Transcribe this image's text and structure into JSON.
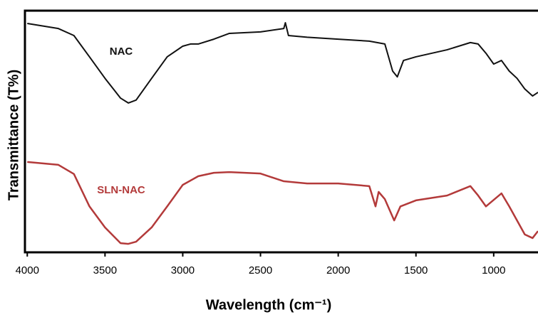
{
  "chart_data": {
    "type": "line",
    "xlabel": "Wavelength (cm⁻¹)",
    "ylabel": "Transmittance (T%)",
    "xlim": [
      4015,
      715
    ],
    "xticks": [
      4000,
      3500,
      3000,
      2500,
      2000,
      1500,
      1000
    ],
    "ylim": [
      0,
      100
    ],
    "series": [
      {
        "name": "NAC",
        "color": "#111111",
        "x": [
          4000,
          3800,
          3700,
          3600,
          3500,
          3400,
          3350,
          3300,
          3200,
          3100,
          3000,
          2950,
          2900,
          2800,
          2700,
          2500,
          2350,
          2340,
          2320,
          2200,
          2000,
          1800,
          1700,
          1650,
          1620,
          1580,
          1500,
          1300,
          1150,
          1100,
          1050,
          1000,
          950,
          900,
          850,
          800,
          750,
          715
        ],
        "values": [
          94.7,
          92.6,
          89.7,
          80.9,
          72,
          63.8,
          61.8,
          63,
          72,
          80.9,
          85.3,
          86.2,
          86.2,
          88.2,
          90.6,
          91.2,
          92.6,
          95,
          89.7,
          89,
          88.2,
          87.4,
          86.2,
          75,
          72.6,
          79.4,
          80.9,
          83.8,
          86.8,
          86.2,
          82.4,
          77.9,
          79.4,
          75,
          72,
          67.6,
          64.7,
          66.2
        ]
      },
      {
        "name": "SLN-NAC",
        "color": "#b33a3a",
        "x": [
          4000,
          3800,
          3700,
          3600,
          3500,
          3400,
          3350,
          3300,
          3200,
          3100,
          3000,
          2900,
          2800,
          2700,
          2500,
          2350,
          2200,
          2000,
          1800,
          1760,
          1740,
          1700,
          1640,
          1600,
          1500,
          1300,
          1150,
          1100,
          1050,
          950,
          900,
          850,
          800,
          750,
          715
        ],
        "values": [
          37.4,
          36.2,
          32.4,
          19,
          10.3,
          3.8,
          3.5,
          4.4,
          10.3,
          19,
          27.9,
          31.5,
          32.9,
          33.2,
          32.6,
          29.4,
          28.5,
          28.5,
          27.4,
          19,
          25,
          22,
          13.2,
          19,
          21.5,
          23.5,
          27.4,
          23.5,
          19,
          24.4,
          19,
          13.2,
          7.4,
          5.9,
          8.8
        ]
      }
    ]
  }
}
